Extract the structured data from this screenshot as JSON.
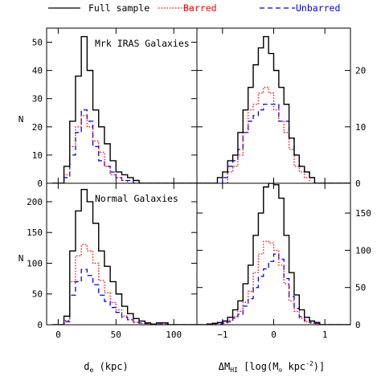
{
  "legend": {
    "items": [
      {
        "label": "Full sample",
        "color": "#000000",
        "style": "solid"
      },
      {
        "label": "Barred",
        "color": "#ff0000",
        "style": "dotted"
      },
      {
        "label": "Unbarred",
        "color": "#0000ff",
        "style": "dashed"
      }
    ]
  },
  "x_labels": {
    "left": "d_e (kpc)",
    "right": "ΔM_HI [log(M_⊙ kpc^-2)]"
  },
  "y_label": "N",
  "chart_data": [
    {
      "type": "histogram",
      "title": "Mrk IRAS Galaxies",
      "xlim": [
        -10,
        120
      ],
      "ylim": [
        0,
        55
      ],
      "xticks": [
        0,
        50,
        100
      ],
      "yticks": [
        0,
        10,
        20,
        30,
        40,
        50
      ],
      "bins": {
        "start": -5,
        "width": 5
      },
      "series": [
        {
          "name": "Full sample",
          "values": [
            0,
            0,
            6,
            22,
            38,
            52,
            40,
            26,
            20,
            14,
            8,
            4,
            3,
            2,
            1,
            0,
            0,
            0,
            0,
            0,
            0,
            0,
            0,
            0,
            0
          ]
        },
        {
          "name": "Barred",
          "values": [
            0,
            0,
            3,
            13,
            20,
            24,
            20,
            15,
            11,
            6,
            3,
            2,
            1,
            0,
            0,
            0,
            0,
            0,
            0,
            0,
            0,
            0,
            0,
            0,
            0
          ]
        },
        {
          "name": "Unbarred",
          "values": [
            0,
            0,
            2,
            10,
            18,
            26,
            22,
            13,
            8,
            6,
            4,
            2,
            1,
            1,
            0,
            0,
            0,
            0,
            0,
            0,
            0,
            0,
            0,
            0,
            0
          ]
        }
      ]
    },
    {
      "type": "histogram",
      "xlim": [
        -1.5,
        1.5
      ],
      "ylim": [
        0,
        27.5
      ],
      "xticks": [
        -1,
        0,
        1
      ],
      "yticks": [
        0,
        10,
        20
      ],
      "bins": {
        "start": -1.5,
        "width": 0.1
      },
      "series": [
        {
          "name": "Full sample",
          "values": [
            0,
            0,
            0,
            0,
            1,
            2,
            4,
            5,
            9,
            13,
            17,
            21,
            24,
            26,
            23,
            20,
            17,
            14,
            8,
            5,
            3,
            2,
            1,
            0,
            0,
            0,
            0,
            0,
            0,
            0
          ]
        },
        {
          "name": "Barred",
          "values": [
            0,
            0,
            0,
            0,
            0,
            0,
            2,
            3,
            5,
            9,
            13,
            14,
            16,
            17,
            16,
            13,
            11,
            9,
            6,
            3,
            2,
            1,
            0,
            0,
            0,
            0,
            0,
            0,
            0,
            0
          ]
        },
        {
          "name": "Unbarred",
          "values": [
            0,
            0,
            0,
            0,
            0,
            1,
            3,
            4,
            6,
            9,
            11,
            12,
            13,
            14,
            14,
            14,
            11,
            11,
            8,
            5,
            3,
            2,
            1,
            0,
            0,
            0,
            0,
            0,
            0,
            0
          ]
        }
      ]
    },
    {
      "type": "histogram",
      "title": "Normal Galaxies",
      "xlim": [
        -10,
        120
      ],
      "ylim": [
        0,
        230
      ],
      "xticks": [
        0,
        50,
        100
      ],
      "yticks": [
        0,
        50,
        100,
        150,
        200
      ],
      "bins": {
        "start": -5,
        "width": 5
      },
      "series": [
        {
          "name": "Full sample",
          "values": [
            0,
            0,
            14,
            120,
            185,
            220,
            200,
            165,
            120,
            95,
            70,
            50,
            30,
            18,
            10,
            6,
            3,
            1,
            3,
            3,
            0,
            0,
            0,
            0,
            0
          ]
        },
        {
          "name": "Barred",
          "values": [
            0,
            0,
            7,
            70,
            112,
            130,
            120,
            100,
            72,
            52,
            36,
            24,
            14,
            8,
            4,
            2,
            1,
            0,
            1,
            1,
            0,
            0,
            0,
            0,
            0
          ]
        },
        {
          "name": "Unbarred",
          "values": [
            0,
            0,
            5,
            48,
            70,
            90,
            80,
            65,
            48,
            38,
            28,
            20,
            12,
            8,
            4,
            3,
            2,
            0,
            1,
            1,
            0,
            0,
            0,
            0,
            0
          ]
        }
      ]
    },
    {
      "type": "histogram",
      "xlim": [
        -1.5,
        1.5
      ],
      "ylim": [
        0,
        190
      ],
      "xticks": [
        -1,
        0,
        1
      ],
      "yticks": [
        0,
        50,
        100,
        150
      ],
      "bins": {
        "start": -1.5,
        "width": 0.1
      },
      "series": [
        {
          "name": "Full sample",
          "values": [
            0,
            0,
            1,
            2,
            3,
            5,
            10,
            20,
            32,
            55,
            80,
            120,
            150,
            185,
            190,
            188,
            170,
            120,
            70,
            40,
            20,
            10,
            5,
            3,
            0,
            0,
            0,
            0,
            0,
            0
          ]
        },
        {
          "name": "Barred",
          "values": [
            0,
            0,
            0,
            1,
            2,
            3,
            6,
            11,
            18,
            30,
            45,
            70,
            95,
            112,
            110,
            100,
            80,
            55,
            32,
            18,
            9,
            4,
            2,
            1,
            0,
            0,
            0,
            0,
            0,
            0
          ]
        },
        {
          "name": "Unbarred",
          "values": [
            0,
            0,
            0,
            1,
            1,
            2,
            4,
            9,
            14,
            25,
            35,
            50,
            65,
            75,
            85,
            95,
            88,
            62,
            38,
            22,
            11,
            6,
            3,
            2,
            0,
            0,
            0,
            0,
            0,
            0
          ]
        }
      ]
    }
  ]
}
